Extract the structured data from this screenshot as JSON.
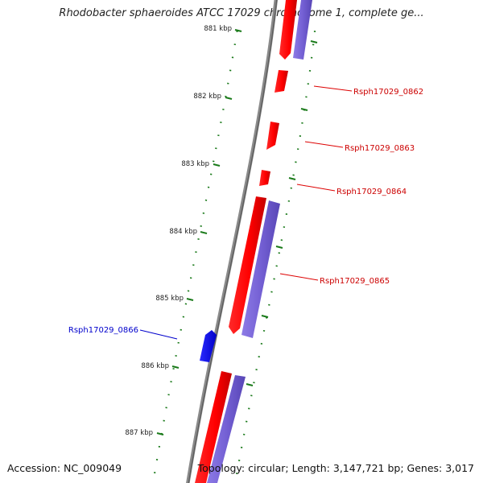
{
  "title": "Rhodobacter sphaeroides ATCC 17029 chromosome 1, complete ge...",
  "accession": "Accession: NC_009049",
  "summary": "Topology: circular; Length: 3,147,721 bp; Genes: 3,017",
  "colors": {
    "forward_gene": "#ff0000",
    "reverse_gene": "#0000ff",
    "cds_band": "#7b68d8",
    "backbone": "#7a7a7a",
    "ticks": "#1a7a1a"
  },
  "ticks": [
    "881 kbp",
    "882 kbp",
    "883 kbp",
    "884 kbp",
    "885 kbp",
    "886 kbp",
    "887 kbp"
  ],
  "gene_labels": [
    {
      "id": "gene-label-rsph17029-0862",
      "text": "Rsph17029_0862",
      "strand": "forward"
    },
    {
      "id": "gene-label-rsph17029-0863",
      "text": "Rsph17029_0863",
      "strand": "forward"
    },
    {
      "id": "gene-label-rsph17029-0864",
      "text": "Rsph17029_0864",
      "strand": "forward"
    },
    {
      "id": "gene-label-rsph17029-0865",
      "text": "Rsph17029_0865",
      "strand": "forward"
    },
    {
      "id": "gene-label-rsph17029-0866",
      "text": "Rsph17029_0866",
      "strand": "reverse"
    }
  ]
}
